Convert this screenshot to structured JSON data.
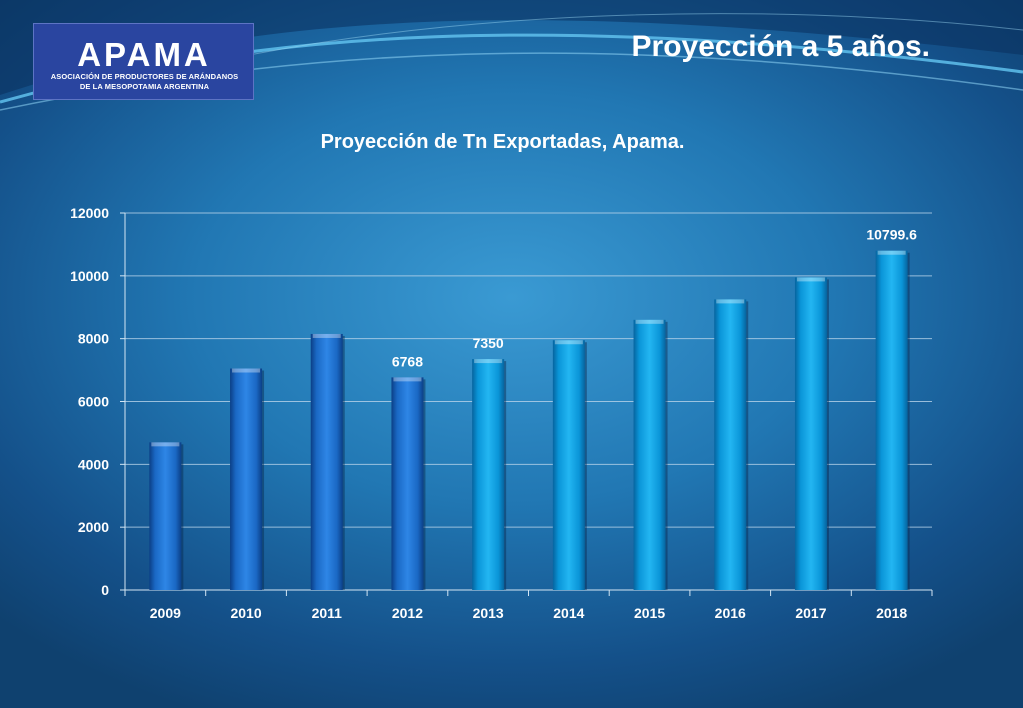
{
  "logo": {
    "wordmark": "APAMA",
    "subtitle_line1": "ASOCIACIÓN DE PRODUCTORES DE ARÁNDANOS",
    "subtitle_line2": "DE LA MESOPOTAMIA ARGENTINA"
  },
  "slide_title": "Proyección a 5 años.",
  "colors": {
    "actual_bar": "#1f76d3",
    "projected_bar": "#0ea0e3",
    "background": "#2177b3",
    "text": "#ffffff"
  },
  "chart_data": {
    "type": "bar",
    "title": "Proyección de Tn Exportadas, Apama.",
    "xlabel": "",
    "ylabel": "",
    "categories": [
      "2009",
      "2010",
      "2011",
      "2012",
      "2013",
      "2014",
      "2015",
      "2016",
      "2017",
      "2018"
    ],
    "values": [
      4700,
      7050,
      8150,
      6768,
      7350,
      7950,
      8600,
      9250,
      9950,
      10799.6
    ],
    "bar_color_group": [
      "actual",
      "actual",
      "actual",
      "actual",
      "projected",
      "projected",
      "projected",
      "projected",
      "projected",
      "projected"
    ],
    "data_labels": [
      null,
      null,
      null,
      "6768",
      "7350",
      null,
      null,
      null,
      null,
      "10799.6"
    ],
    "ylim": [
      0,
      12000
    ],
    "yticks": [
      0,
      2000,
      4000,
      6000,
      8000,
      10000,
      12000
    ],
    "grid": true,
    "legend": "none"
  }
}
